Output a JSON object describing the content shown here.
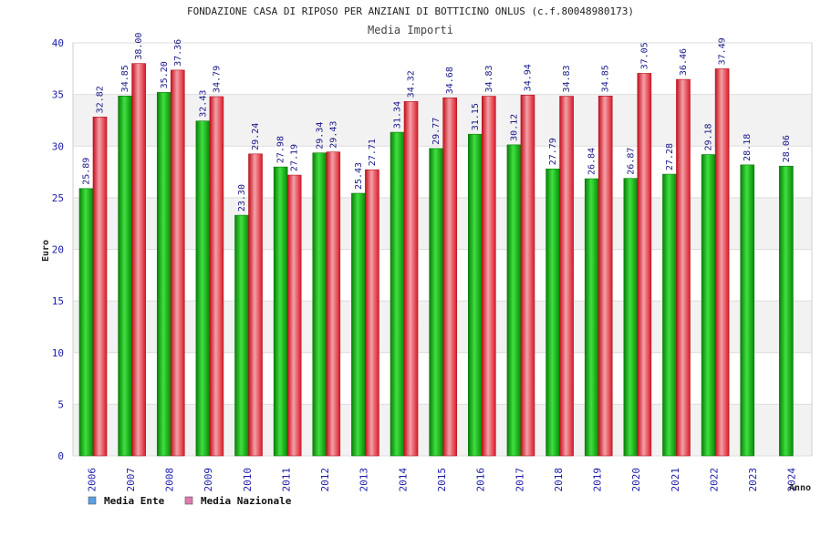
{
  "chart_data": {
    "type": "bar",
    "title": "FONDAZIONE CASA DI RIPOSO PER ANZIANI DI BOTTICINO ONLUS (c.f.80048980173)",
    "subtitle": "Media Importi",
    "xlabel": "Anno",
    "ylabel": "Euro",
    "ylim": [
      0,
      40
    ],
    "yticks": [
      0,
      5,
      10,
      15,
      20,
      25,
      30,
      35,
      40
    ],
    "grid": true,
    "legend_position": "bottom-left",
    "categories": [
      "2006",
      "2007",
      "2008",
      "2009",
      "2010",
      "2011",
      "2012",
      "2013",
      "2014",
      "2015",
      "2016",
      "2017",
      "2018",
      "2019",
      "2020",
      "2021",
      "2022",
      "2023",
      "2024"
    ],
    "series": [
      {
        "name": "Media Ente",
        "color": "#0fb30f",
        "legend_color": "#5aa0e6",
        "values": [
          25.89,
          34.85,
          35.2,
          32.43,
          23.3,
          27.98,
          29.34,
          25.43,
          31.34,
          29.77,
          31.15,
          30.12,
          27.79,
          26.84,
          26.87,
          27.28,
          29.18,
          28.18,
          28.06
        ],
        "labels": [
          "25.89",
          "34.85",
          "35.20",
          "32.43",
          "23.30",
          "27.98",
          "29.34",
          "25.43",
          "31.34",
          "29.77",
          "31.15",
          "30.12",
          "27.79",
          "26.84",
          "26.87",
          "27.28",
          "29.18",
          "28.18",
          "28.06"
        ]
      },
      {
        "name": "Media Nazionale",
        "color": "#e3232f",
        "legend_color": "#e07ab0",
        "values": [
          32.82,
          38.0,
          37.36,
          34.79,
          29.24,
          27.19,
          29.43,
          27.71,
          34.32,
          34.68,
          34.83,
          34.94,
          34.83,
          34.85,
          37.05,
          36.46,
          37.49,
          null,
          null
        ],
        "labels": [
          "32.82",
          "38.00",
          "37.36",
          "34.79",
          "29.24",
          "27.19",
          "29.43",
          "27.71",
          "34.32",
          "34.68",
          "34.83",
          "34.94",
          "34.83",
          "34.85",
          "37.05",
          "36.46",
          "37.49",
          null,
          null
        ]
      }
    ]
  }
}
